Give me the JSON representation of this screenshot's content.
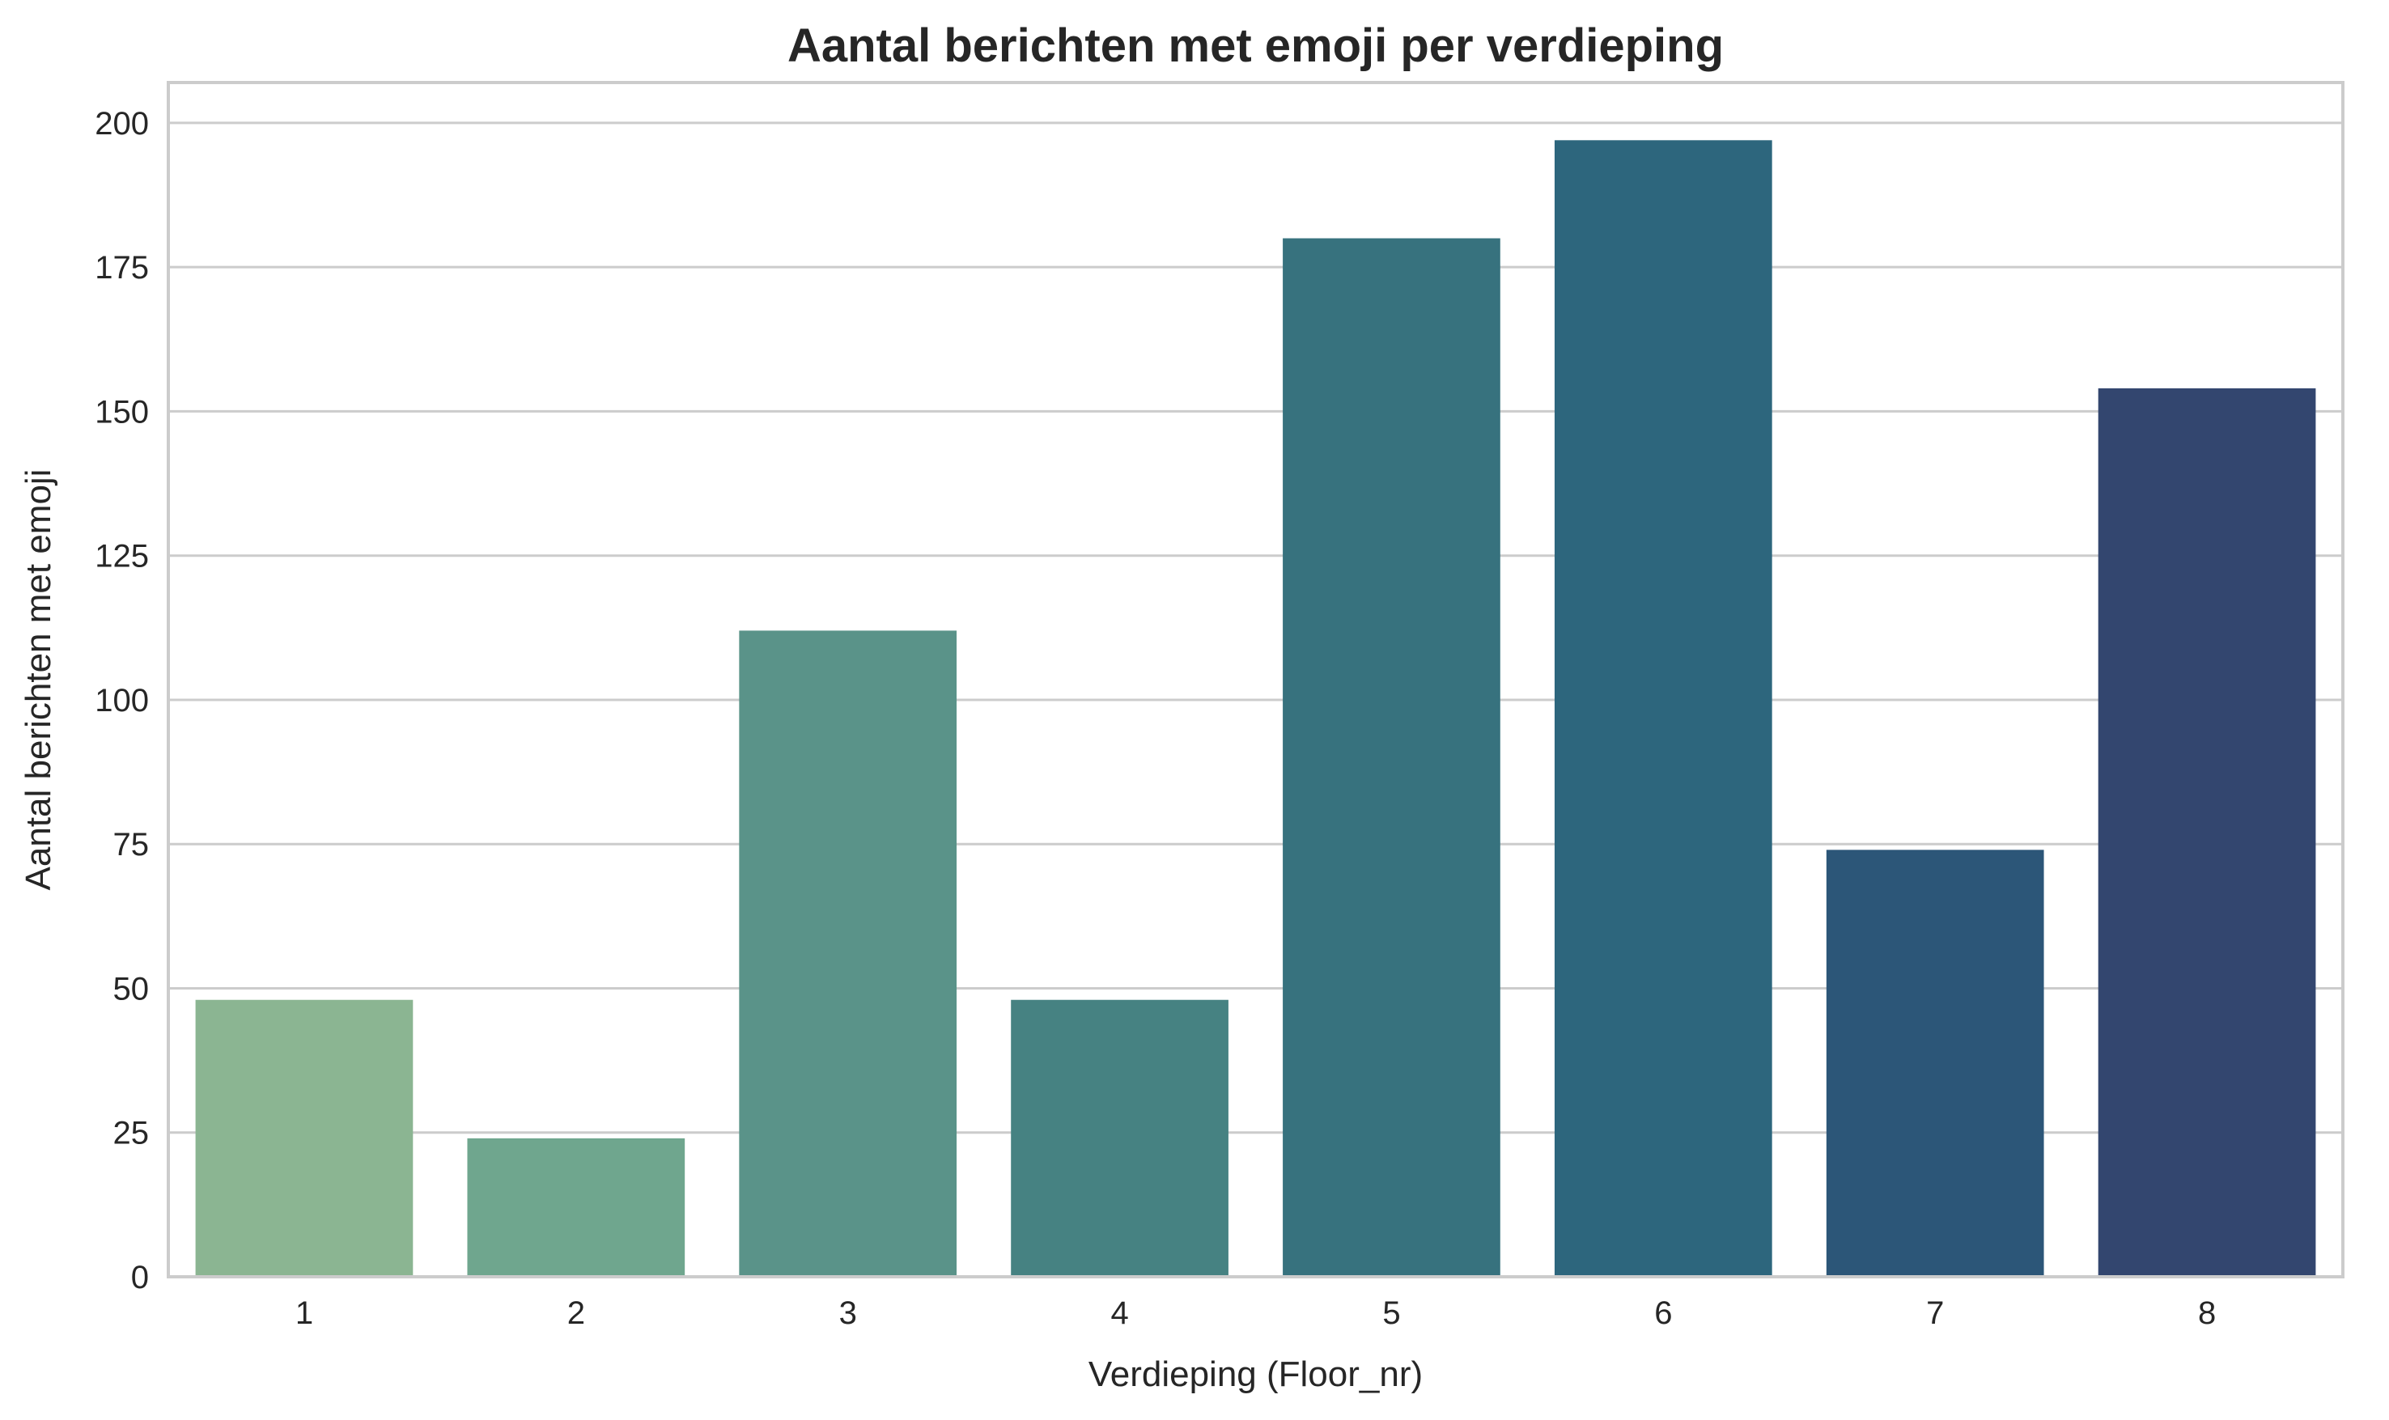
{
  "chart_data": {
    "type": "bar",
    "title": "Aantal berichten met emoji per verdieping",
    "xlabel": "Verdieping (Floor_nr)",
    "ylabel": "Aantal berichten met emoji",
    "categories": [
      "1",
      "2",
      "3",
      "4",
      "5",
      "6",
      "7",
      "8"
    ],
    "values": [
      48,
      24,
      112,
      48,
      180,
      197,
      74,
      154
    ],
    "colors": [
      "#8bb592",
      "#6fa68e",
      "#5a9389",
      "#468282",
      "#37727e",
      "#2d667d",
      "#2c5678",
      "#33466f"
    ],
    "ylim": [
      0,
      207
    ],
    "yticks": [
      0,
      25,
      50,
      75,
      100,
      125,
      150,
      175,
      200
    ],
    "grid": "horizontal",
    "legend": "none"
  }
}
